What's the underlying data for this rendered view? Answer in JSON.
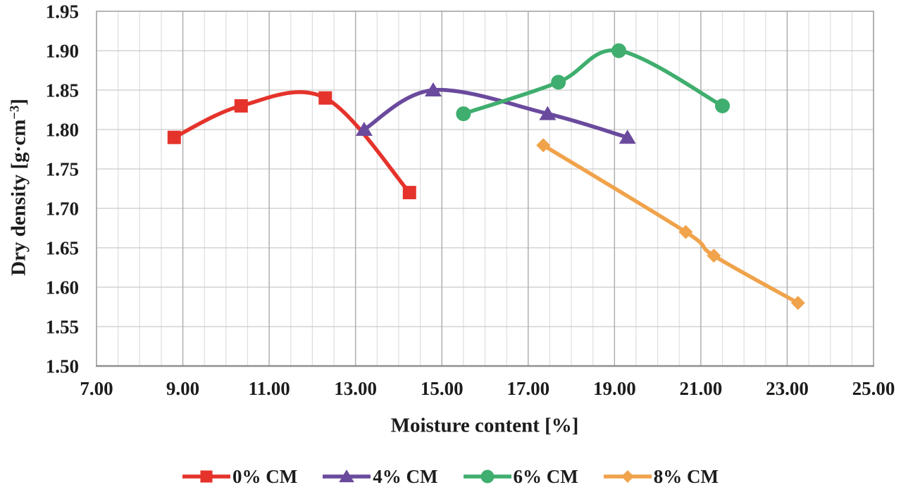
{
  "chart_data": {
    "type": "line",
    "title": "",
    "xlabel": "Moisture content [%]",
    "ylabel": "Dry density [g·cm⁻³]",
    "ylabel_parts": {
      "prefix": "Dry density [g·cm",
      "sup": "−3",
      "suffix": "]"
    },
    "x_axis": {
      "min": 7.0,
      "max": 25.0,
      "major_step": 2.0,
      "minor_step": 0.5,
      "tick_labels": [
        "7.00",
        "9.00",
        "11.00",
        "13.00",
        "15.00",
        "17.00",
        "19.00",
        "21.00",
        "23.00",
        "25.00"
      ]
    },
    "y_axis": {
      "min": 1.5,
      "max": 1.95,
      "major_step": 0.05,
      "tick_labels": [
        "1.50",
        "1.55",
        "1.60",
        "1.65",
        "1.70",
        "1.75",
        "1.80",
        "1.85",
        "1.90",
        "1.95"
      ]
    },
    "grid": {
      "horizontal": "on",
      "vertical_minor": "on",
      "vertical_major": "on"
    },
    "legend_position": "bottom",
    "series": [
      {
        "name": "0% CM",
        "color": "#E5332B",
        "marker": "square",
        "smooth": true,
        "points": [
          [
            8.8,
            1.79
          ],
          [
            10.35,
            1.83
          ],
          [
            12.3,
            1.84
          ],
          [
            14.25,
            1.72
          ]
        ]
      },
      {
        "name": "4% CM",
        "color": "#6A4A9D",
        "marker": "triangle",
        "smooth": true,
        "points": [
          [
            13.2,
            1.8
          ],
          [
            14.8,
            1.85
          ],
          [
            17.45,
            1.82
          ],
          [
            19.3,
            1.79
          ]
        ]
      },
      {
        "name": "6% CM",
        "color": "#3FAE6E",
        "marker": "circle",
        "smooth": true,
        "points": [
          [
            15.5,
            1.82
          ],
          [
            17.7,
            1.86
          ],
          [
            19.1,
            1.9
          ],
          [
            21.5,
            1.83
          ]
        ]
      },
      {
        "name": "8% CM",
        "color": "#F0A34B",
        "marker": "diamond",
        "smooth": true,
        "points": [
          [
            17.35,
            1.78
          ],
          [
            20.65,
            1.67
          ],
          [
            21.3,
            1.64
          ],
          [
            23.25,
            1.58
          ]
        ]
      }
    ]
  }
}
